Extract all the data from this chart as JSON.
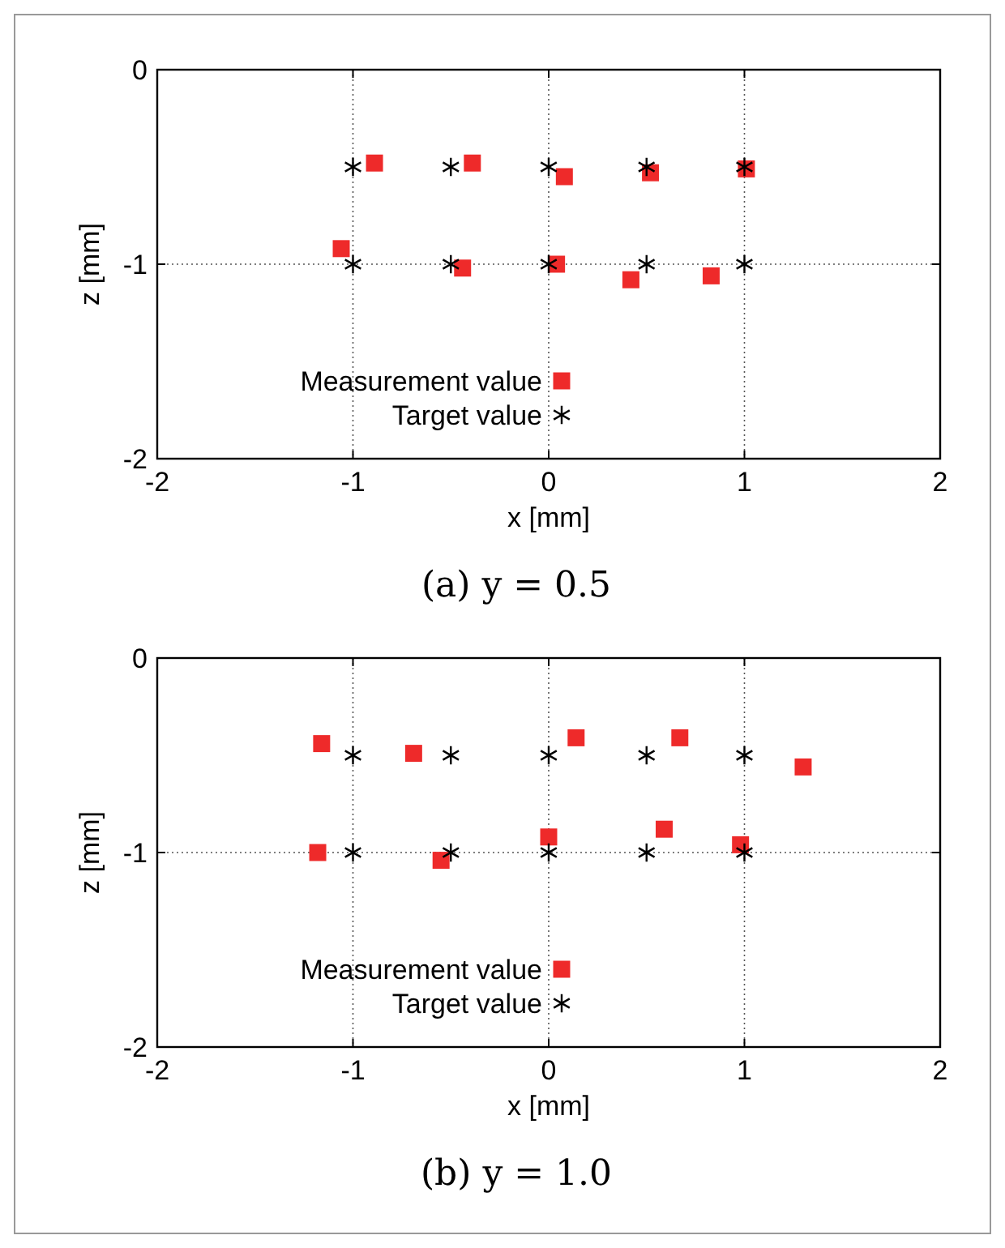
{
  "chart_data": [
    {
      "type": "scatter",
      "title": "(a)  y = 0.5",
      "xlabel": "x [mm]",
      "ylabel": "z [mm]",
      "xlim": [
        -2,
        2
      ],
      "ylim": [
        -2,
        0
      ],
      "xticks": [
        -2,
        -1,
        0,
        1,
        2
      ],
      "yticks": [
        -2,
        -1,
        0
      ],
      "grid": true,
      "legend": "bottom",
      "series": [
        {
          "name": "Measurement value",
          "color": "#ee2a2a",
          "marker": "square",
          "x": [
            -0.89,
            -0.39,
            0.08,
            0.52,
            1.01,
            -1.06,
            -0.44,
            0.04,
            0.42,
            0.83
          ],
          "values": [
            -0.48,
            -0.48,
            -0.55,
            -0.53,
            -0.51,
            -0.92,
            -1.02,
            -1.0,
            -1.08,
            -1.06
          ]
        },
        {
          "name": "Target value",
          "color": "#000000",
          "marker": "cross",
          "x": [
            -1,
            -0.5,
            0,
            0.5,
            1,
            -1,
            -0.5,
            0,
            0.5,
            1
          ],
          "values": [
            -0.5,
            -0.5,
            -0.5,
            -0.5,
            -0.5,
            -1,
            -1,
            -1,
            -1,
            -1
          ]
        }
      ]
    },
    {
      "type": "scatter",
      "title": "(b)  y = 1.0",
      "xlabel": "x [mm]",
      "ylabel": "z [mm]",
      "xlim": [
        -2,
        2
      ],
      "ylim": [
        -2,
        0
      ],
      "xticks": [
        -2,
        -1,
        0,
        1,
        2
      ],
      "yticks": [
        -2,
        -1,
        0
      ],
      "grid": true,
      "legend": "bottom",
      "series": [
        {
          "name": "Measurement value",
          "color": "#ee2a2a",
          "marker": "square",
          "x": [
            -1.16,
            -0.69,
            0.14,
            0.67,
            1.3,
            -1.18,
            -0.55,
            0.0,
            0.59,
            0.98
          ],
          "values": [
            -0.44,
            -0.49,
            -0.41,
            -0.41,
            -0.56,
            -1.0,
            -1.04,
            -0.92,
            -0.88,
            -0.96
          ]
        },
        {
          "name": "Target value",
          "color": "#000000",
          "marker": "cross",
          "x": [
            -1,
            -0.5,
            0,
            0.5,
            1,
            -1,
            -0.5,
            0,
            0.5,
            1
          ],
          "values": [
            -0.5,
            -0.5,
            -0.5,
            -0.5,
            -0.5,
            -1,
            -1,
            -1,
            -1,
            -1
          ]
        }
      ]
    }
  ]
}
